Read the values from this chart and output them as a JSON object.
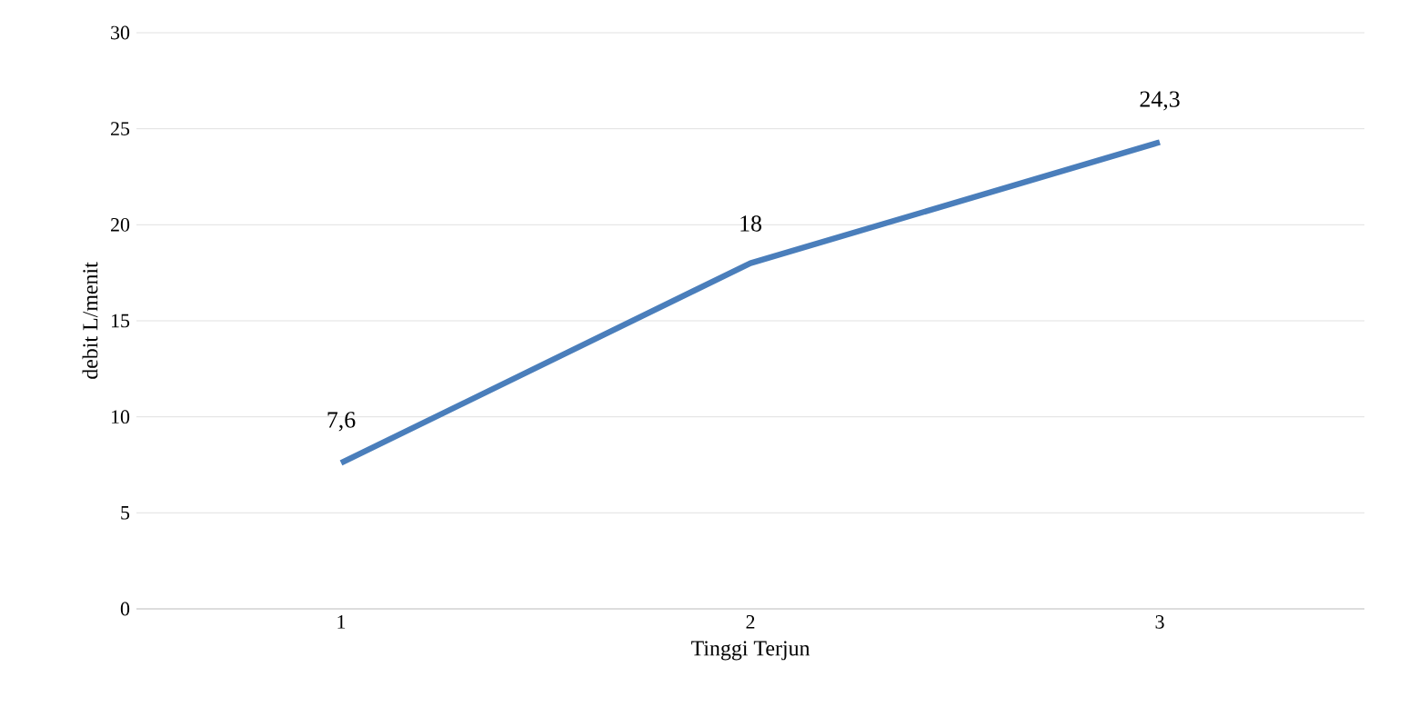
{
  "chart_data": {
    "type": "line",
    "xlabel": "Tinggi Terjun",
    "ylabel": "debit L/menit",
    "categories": [
      "1",
      "2",
      "3"
    ],
    "series": [
      {
        "color": "#4a7ebb",
        "values": [
          7.6,
          18,
          24.3
        ],
        "value_labels": [
          "7,6",
          "18",
          "24,3"
        ]
      }
    ],
    "ylim": [
      0,
      30
    ],
    "yticks": [
      0,
      5,
      10,
      15,
      20,
      25,
      30
    ],
    "grid": "y",
    "marker": "none",
    "line_style": "solid"
  }
}
